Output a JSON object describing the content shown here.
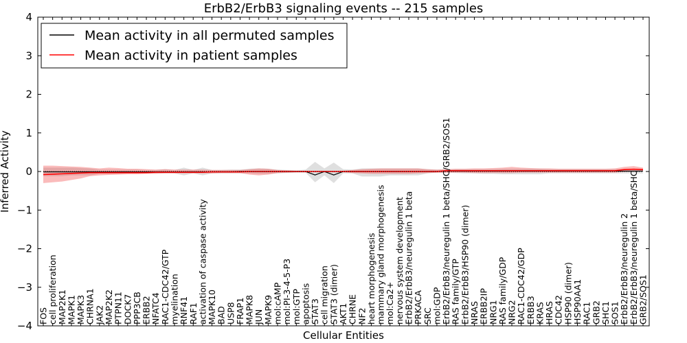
{
  "chart_data": {
    "type": "line",
    "title": "ErbB2/ErbB3 signaling events -- 215 samples",
    "xlabel": "Cellular Entities",
    "ylabel": "Inferred Activity",
    "ylim": [
      -4,
      4
    ],
    "yticks": [
      -4,
      -3,
      -2,
      -1,
      0,
      1,
      2,
      3,
      4
    ],
    "grid": false,
    "legend_position": "top-left",
    "categories": [
      "FOS",
      "cell proliferation",
      "MAP2K1",
      "MAPK1",
      "MAPK3",
      "CHRNA1",
      "JAK2",
      "MAP2K2",
      "PTPN11",
      "DOCK7",
      "PPP3CB",
      "ERBB2",
      "NFATC4",
      "RAC1-CDC42/GTP",
      "myelination",
      "RNF41",
      "RAF1",
      "activation of caspase activity",
      "MAPK10",
      "BAD",
      "USP8",
      "FRAP1",
      "MAPK8",
      "JUN",
      "MAPK9",
      "mol:cAMP",
      "mol:PI-3-4-5-P3",
      "mol:GTP",
      "apoptosis",
      "STAT3",
      "cell migration",
      "STAT3 (dimer)",
      "AKT1",
      "CHRNE",
      "NF2",
      "heart morphogenesis",
      "mammary gland morphogenesis",
      "mol:Ca2+",
      "nervous system development",
      "ErbB2/ErbB3/neuregulin 1 beta",
      "PRKACA",
      "SRC",
      "mol:GDP",
      "ErbB2/ErbB3/neuregulin 1 beta/SHC/GRB2/SOS1",
      "RAS family/GTP",
      "ErbB2/ErbB3/HSP90 (dimer)",
      "NRAS",
      "ERBB2IP",
      "NRG1",
      "RAS family/GDP",
      "NRG2",
      "RAC1-CDC42/GDP",
      "ERBB3",
      "KRAS",
      "HRAS",
      "CDC42",
      "HSP90 (dimer)",
      "HSP90AA1",
      "RAC1",
      "GRB2",
      "SHC1",
      "SOS1",
      "ErbB2/ErbB3/neuregulin 2",
      "ErbB2/ErbB3/neuregulin 1 beta/SHC",
      "GRB2/SOS1"
    ],
    "series": [
      {
        "name": "Mean activity in all permuted samples",
        "color": "#000000",
        "values": [
          -0.01,
          -0.01,
          -0.01,
          -0.01,
          -0.01,
          -0.01,
          -0.01,
          -0.01,
          -0.01,
          -0.01,
          -0.01,
          -0.01,
          -0.01,
          -0.01,
          -0.01,
          -0.01,
          -0.01,
          -0.01,
          -0.01,
          -0.01,
          -0.01,
          0.0,
          0.0,
          0.0,
          0.0,
          0.0,
          0.0,
          0.0,
          0.0,
          -0.09,
          0.0,
          -0.09,
          0.0,
          0.0,
          0.0,
          0.0,
          0.0,
          0.0,
          0.0,
          0.0,
          0.0,
          0.0,
          0.0,
          0.01,
          0.01,
          0.01,
          0.01,
          0.01,
          0.01,
          0.01,
          0.01,
          0.01,
          0.01,
          0.01,
          0.01,
          0.01,
          0.01,
          0.01,
          0.01,
          0.01,
          0.01,
          0.01,
          0.01,
          0.01,
          0.01
        ],
        "lower": [
          -0.12,
          -0.12,
          -0.12,
          -0.1,
          -0.1,
          -0.1,
          -0.06,
          -0.06,
          -0.06,
          -0.05,
          -0.05,
          -0.05,
          -0.05,
          -0.05,
          -0.05,
          -0.1,
          -0.05,
          -0.1,
          -0.05,
          -0.05,
          -0.05,
          -0.05,
          -0.05,
          -0.06,
          -0.06,
          -0.05,
          -0.04,
          -0.03,
          -0.03,
          -0.28,
          -0.1,
          -0.3,
          -0.05,
          -0.05,
          -0.13,
          -0.13,
          -0.13,
          -0.1,
          -0.1,
          -0.1,
          -0.1,
          -0.05,
          -0.03,
          -0.03,
          -0.04,
          -0.05,
          -0.05,
          -0.06,
          -0.06,
          -0.07,
          -0.07,
          -0.07,
          -0.07,
          -0.07,
          -0.05,
          -0.05,
          -0.05,
          -0.05,
          -0.05,
          -0.05,
          -0.05,
          -0.05,
          -0.05,
          -0.05,
          -0.05
        ],
        "upper": [
          0.1,
          0.1,
          0.1,
          0.1,
          0.09,
          0.08,
          0.05,
          0.05,
          0.05,
          0.05,
          0.05,
          0.04,
          0.04,
          0.06,
          0.04,
          0.1,
          0.04,
          0.1,
          0.04,
          0.04,
          0.05,
          0.05,
          0.07,
          0.08,
          0.07,
          0.05,
          0.04,
          0.03,
          0.05,
          0.25,
          0.08,
          0.23,
          0.06,
          0.05,
          0.08,
          0.08,
          0.08,
          0.08,
          0.08,
          0.08,
          0.08,
          0.06,
          0.05,
          0.05,
          0.06,
          0.06,
          0.06,
          0.06,
          0.06,
          0.07,
          0.07,
          0.07,
          0.07,
          0.07,
          0.06,
          0.06,
          0.06,
          0.06,
          0.06,
          0.06,
          0.06,
          0.06,
          0.06,
          0.06,
          0.06
        ]
      },
      {
        "name": "Mean activity in patient samples",
        "color": "#ff0000",
        "values": [
          -0.08,
          -0.07,
          -0.06,
          -0.05,
          -0.04,
          -0.03,
          -0.03,
          -0.03,
          -0.03,
          -0.03,
          -0.03,
          -0.03,
          -0.02,
          -0.02,
          -0.02,
          -0.02,
          -0.02,
          -0.02,
          -0.01,
          -0.01,
          -0.01,
          -0.01,
          0.0,
          0.0,
          0.0,
          0.0,
          0.0,
          0.0,
          0.0,
          0.0,
          0.0,
          0.0,
          0.0,
          0.0,
          0.0,
          0.0,
          0.0,
          0.0,
          0.0,
          0.0,
          0.0,
          0.0,
          0.0,
          0.02,
          0.02,
          0.02,
          0.02,
          0.02,
          0.02,
          0.02,
          0.02,
          0.02,
          0.02,
          0.02,
          0.02,
          0.02,
          0.02,
          0.02,
          0.02,
          0.02,
          0.02,
          0.02,
          0.05,
          0.06,
          0.05
        ],
        "lower": [
          -0.3,
          -0.28,
          -0.26,
          -0.22,
          -0.18,
          -0.12,
          -0.1,
          -0.09,
          -0.08,
          -0.07,
          -0.07,
          -0.06,
          -0.06,
          -0.05,
          -0.05,
          -0.05,
          -0.05,
          -0.05,
          -0.05,
          -0.04,
          -0.04,
          -0.04,
          -0.08,
          -0.1,
          -0.08,
          -0.04,
          -0.03,
          -0.02,
          -0.02,
          -0.02,
          -0.02,
          -0.02,
          -0.02,
          -0.04,
          -0.05,
          -0.06,
          -0.06,
          -0.06,
          -0.06,
          -0.06,
          -0.05,
          -0.04,
          -0.03,
          -0.03,
          -0.03,
          -0.03,
          -0.04,
          -0.04,
          -0.04,
          -0.04,
          -0.04,
          -0.03,
          -0.03,
          -0.03,
          -0.03,
          -0.03,
          -0.03,
          -0.03,
          -0.03,
          -0.03,
          -0.03,
          -0.03,
          -0.01,
          0.0,
          0.0
        ],
        "upper": [
          0.15,
          0.15,
          0.14,
          0.13,
          0.12,
          0.1,
          0.08,
          0.1,
          0.09,
          0.07,
          0.07,
          0.06,
          0.05,
          0.06,
          0.05,
          0.05,
          0.05,
          0.05,
          0.04,
          0.04,
          0.04,
          0.04,
          0.06,
          0.08,
          0.07,
          0.04,
          0.03,
          0.02,
          0.02,
          0.02,
          0.02,
          0.02,
          0.02,
          0.04,
          0.06,
          0.07,
          0.08,
          0.08,
          0.08,
          0.08,
          0.08,
          0.06,
          0.05,
          0.06,
          0.07,
          0.07,
          0.08,
          0.08,
          0.09,
          0.1,
          0.12,
          0.1,
          0.09,
          0.08,
          0.08,
          0.07,
          0.07,
          0.07,
          0.07,
          0.07,
          0.07,
          0.08,
          0.12,
          0.14,
          0.1
        ]
      }
    ]
  }
}
